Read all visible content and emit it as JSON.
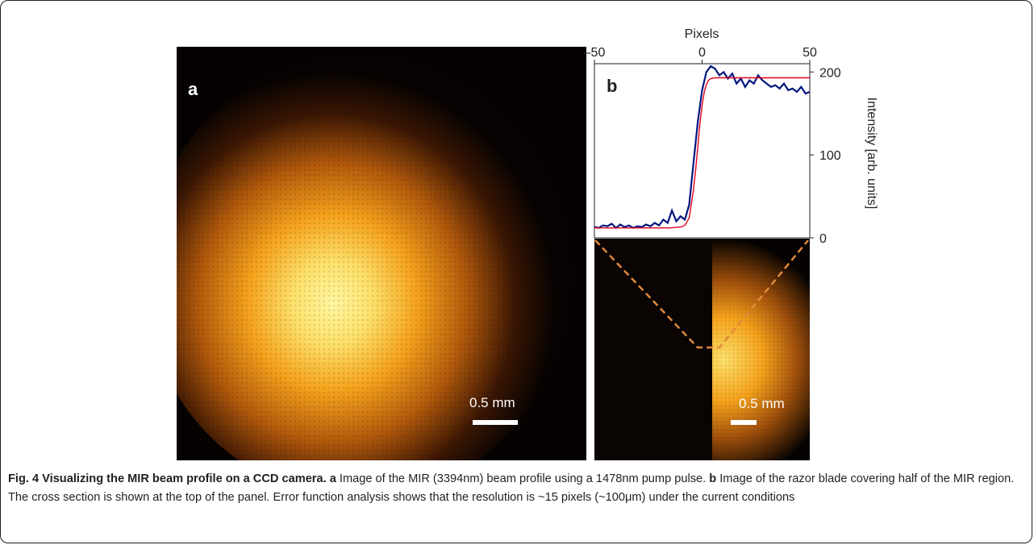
{
  "figure": {
    "panel_a": {
      "letter": "a",
      "scale_label": "0.5 mm"
    },
    "panel_b": {
      "letter": "b",
      "scale_label": "0.5 mm"
    },
    "caption": {
      "title": "Fig. 4 Visualizing the MIR beam profile on a CCD camera.",
      "a_label": "a",
      "a_text": "Image of the MIR (3394nm) beam profile using a 1478nm pump pulse.",
      "b_label": "b",
      "b_text": "Image of the razor blade covering half of the MIR region. The cross section is shown at the top of the panel. Error function analysis shows that the resolution is ~15 pixels (~100μm) under the current conditions"
    },
    "colors": {
      "measured": "#00157f",
      "fit": "#e4001c",
      "guide": "#e0883a",
      "beam_core": "#fff6a0",
      "beam_mid": "#f5a21c"
    }
  },
  "chart_data": {
    "type": "line",
    "xlabel": "Pixels",
    "ylabel": "Intensity [arb. units]",
    "xlim": [
      -50,
      50
    ],
    "ylim": [
      0,
      210
    ],
    "xticks": [
      "–50",
      "0",
      "50"
    ],
    "yticks": [
      "200",
      "100",
      "0"
    ],
    "x_tick_values": [
      -50,
      0,
      50
    ],
    "y_tick_values": [
      200,
      100,
      0
    ],
    "series": [
      {
        "style": "measured",
        "x": [
          -50,
          -48,
          -46,
          -44,
          -42,
          -40,
          -38,
          -36,
          -34,
          -32,
          -30,
          -28,
          -26,
          -24,
          -22,
          -20,
          -18,
          -16,
          -14,
          -12,
          -10,
          -8,
          -6,
          -4,
          -2,
          0,
          2,
          4,
          6,
          8,
          10,
          12,
          14,
          16,
          18,
          20,
          22,
          24,
          26,
          28,
          30,
          32,
          34,
          36,
          38,
          40,
          42,
          44,
          46,
          48,
          50
        ],
        "y": [
          13,
          12,
          15,
          14,
          17,
          12,
          16,
          13,
          15,
          12,
          14,
          13,
          16,
          14,
          18,
          15,
          22,
          18,
          33,
          20,
          26,
          22,
          40,
          90,
          140,
          178,
          200,
          207,
          204,
          196,
          200,
          192,
          198,
          186,
          192,
          182,
          190,
          186,
          196,
          190,
          186,
          182,
          184,
          180,
          186,
          178,
          180,
          176,
          182,
          174,
          176
        ]
      },
      {
        "style": "fit",
        "x": [
          -50,
          -40,
          -30,
          -20,
          -15,
          -10,
          -8,
          -6,
          -4,
          -3,
          -2,
          -1,
          0,
          1,
          2,
          3,
          4,
          6,
          8,
          10,
          20,
          30,
          40,
          50
        ],
        "y": [
          12,
          12,
          12,
          12,
          12,
          13,
          15,
          24,
          58,
          82,
          110,
          138,
          160,
          176,
          185,
          190,
          192,
          193,
          193,
          193,
          193,
          193,
          193,
          193
        ]
      }
    ]
  }
}
